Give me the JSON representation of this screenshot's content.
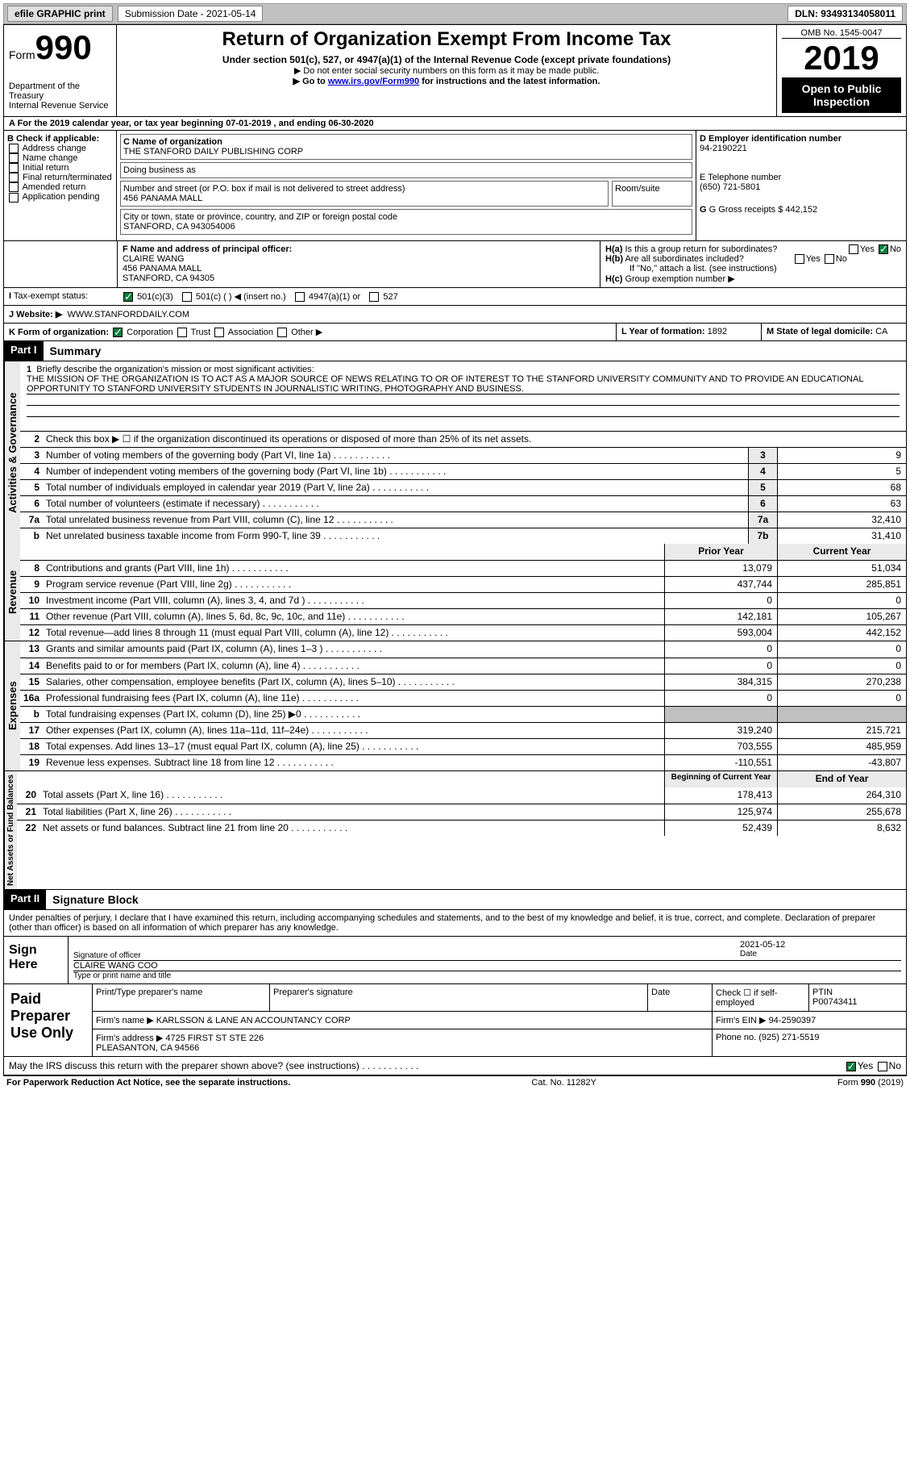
{
  "topbar": {
    "efile": "efile GRAPHIC print",
    "submission": "Submission Date - 2021-05-14",
    "dln": "DLN: 93493134058011"
  },
  "header": {
    "form": "Form",
    "form_num": "990",
    "dept": "Department of the Treasury\nInternal Revenue Service",
    "title": "Return of Organization Exempt From Income Tax",
    "subtitle": "Under section 501(c), 527, or 4947(a)(1) of the Internal Revenue Code (except private foundations)",
    "note1": "▶ Do not enter social security numbers on this form as it may be made public.",
    "note2_pre": "▶ Go to ",
    "note2_link": "www.irs.gov/Form990",
    "note2_post": " for instructions and the latest information.",
    "omb": "OMB No. 1545-0047",
    "year": "2019",
    "open": "Open to Public Inspection"
  },
  "sectA": "A For the 2019 calendar year, or tax year beginning 07-01-2019    , and ending 06-30-2020",
  "sectB": {
    "label": "Check if applicable:",
    "opts": [
      "Address change",
      "Name change",
      "Initial return",
      "Final return/terminated",
      "Amended return",
      "Application pending"
    ]
  },
  "sectC": {
    "name_lbl": "C Name of organization",
    "name": "THE STANFORD DAILY PUBLISHING CORP",
    "dba_lbl": "Doing business as",
    "addr_lbl": "Number and street (or P.O. box if mail is not delivered to street address)",
    "addr": "456 PANAMA MALL",
    "room_lbl": "Room/suite",
    "city_lbl": "City or town, state or province, country, and ZIP or foreign postal code",
    "city": "STANFORD, CA  943054006"
  },
  "sectD": {
    "lbl": "D Employer identification number",
    "val": "94-2190221"
  },
  "sectE": {
    "lbl": "E Telephone number",
    "val": "(650) 721-5801"
  },
  "sectG": {
    "lbl": "G Gross receipts $",
    "val": "442,152"
  },
  "sectF": {
    "lbl": "F  Name and address of principal officer:",
    "name": "CLAIRE WANG",
    "addr1": "456 PANAMA MALL",
    "addr2": "STANFORD, CA  94305"
  },
  "sectH": {
    "a": "Is this a group return for subordinates?",
    "b": "Are all subordinates included?",
    "note": "If \"No,\" attach a list. (see instructions)",
    "c": "Group exemption number ▶"
  },
  "sectI": {
    "lbl": "Tax-exempt status:",
    "o1": "501(c)(3)",
    "o2": "501(c) (  ) ◀ (insert no.)",
    "o3": "4947(a)(1) or",
    "o4": "527"
  },
  "sectJ": {
    "lbl": "J   Website: ▶",
    "val": "WWW.STANFORDDAILY.COM"
  },
  "sectK": {
    "lbl": "K Form of organization:",
    "o1": "Corporation",
    "o2": "Trust",
    "o3": "Association",
    "o4": "Other ▶"
  },
  "sectL": {
    "lbl": "L Year of formation:",
    "val": "1892"
  },
  "sectM": {
    "lbl": "M State of legal domicile:",
    "val": "CA"
  },
  "part1": {
    "hdr": "Part I",
    "title": "Summary",
    "l1_lbl": "Briefly describe the organization's mission or most significant activities:",
    "l1_text": "THE MISSION OF THE ORGANIZATION IS TO ACT AS A MAJOR SOURCE OF NEWS RELATING TO OR OF INTEREST TO THE STANFORD UNIVERSITY COMMUNITY AND TO PROVIDE AN EDUCATIONAL OPPORTUNITY TO STANFORD UNIVERSITY STUDENTS IN JOURNALISTIC WRITING, PHOTOGRAPHY AND BUSINESS.",
    "l2": "Check this box ▶ ☐  if the organization discontinued its operations or disposed of more than 25% of its net assets.",
    "grp1_label": "Activities & Governance",
    "rows_simple": [
      {
        "n": "3",
        "t": "Number of voting members of the governing body (Part VI, line 1a)",
        "box": "3",
        "v": "9"
      },
      {
        "n": "4",
        "t": "Number of independent voting members of the governing body (Part VI, line 1b)",
        "box": "4",
        "v": "5"
      },
      {
        "n": "5",
        "t": "Total number of individuals employed in calendar year 2019 (Part V, line 2a)",
        "box": "5",
        "v": "68"
      },
      {
        "n": "6",
        "t": "Total number of volunteers (estimate if necessary)",
        "box": "6",
        "v": "63"
      },
      {
        "n": "7a",
        "t": "Total unrelated business revenue from Part VIII, column (C), line 12",
        "box": "7a",
        "v": "32,410"
      },
      {
        "n": "b",
        "t": "Net unrelated business taxable income from Form 990-T, line 39",
        "box": "7b",
        "v": "31,410"
      }
    ],
    "col_prior": "Prior Year",
    "col_current": "Current Year",
    "grp2_label": "Revenue",
    "rows_rev": [
      {
        "n": "8",
        "t": "Contributions and grants (Part VIII, line 1h)",
        "p": "13,079",
        "c": "51,034"
      },
      {
        "n": "9",
        "t": "Program service revenue (Part VIII, line 2g)",
        "p": "437,744",
        "c": "285,851"
      },
      {
        "n": "10",
        "t": "Investment income (Part VIII, column (A), lines 3, 4, and 7d )",
        "p": "0",
        "c": "0"
      },
      {
        "n": "11",
        "t": "Other revenue (Part VIII, column (A), lines 5, 6d, 8c, 9c, 10c, and 11e)",
        "p": "142,181",
        "c": "105,267"
      },
      {
        "n": "12",
        "t": "Total revenue—add lines 8 through 11 (must equal Part VIII, column (A), line 12)",
        "p": "593,004",
        "c": "442,152"
      }
    ],
    "grp3_label": "Expenses",
    "rows_exp": [
      {
        "n": "13",
        "t": "Grants and similar amounts paid (Part IX, column (A), lines 1–3 )",
        "p": "0",
        "c": "0"
      },
      {
        "n": "14",
        "t": "Benefits paid to or for members (Part IX, column (A), line 4)",
        "p": "0",
        "c": "0"
      },
      {
        "n": "15",
        "t": "Salaries, other compensation, employee benefits (Part IX, column (A), lines 5–10)",
        "p": "384,315",
        "c": "270,238"
      },
      {
        "n": "16a",
        "t": "Professional fundraising fees (Part IX, column (A), line 11e)",
        "p": "0",
        "c": "0"
      },
      {
        "n": "b",
        "t": "Total fundraising expenses (Part IX, column (D), line 25) ▶0",
        "p": "grey",
        "c": "grey"
      },
      {
        "n": "17",
        "t": "Other expenses (Part IX, column (A), lines 11a–11d, 11f–24e)",
        "p": "319,240",
        "c": "215,721"
      },
      {
        "n": "18",
        "t": "Total expenses. Add lines 13–17 (must equal Part IX, column (A), line 25)",
        "p": "703,555",
        "c": "485,959"
      },
      {
        "n": "19",
        "t": "Revenue less expenses. Subtract line 18 from line 12",
        "p": "-110,551",
        "c": "-43,807"
      }
    ],
    "col_begin": "Beginning of Current Year",
    "col_end": "End of Year",
    "grp4_label": "Net Assets or Fund Balances",
    "rows_net": [
      {
        "n": "20",
        "t": "Total assets (Part X, line 16)",
        "p": "178,413",
        "c": "264,310"
      },
      {
        "n": "21",
        "t": "Total liabilities (Part X, line 26)",
        "p": "125,974",
        "c": "255,678"
      },
      {
        "n": "22",
        "t": "Net assets or fund balances. Subtract line 21 from line 20",
        "p": "52,439",
        "c": "8,632"
      }
    ]
  },
  "part2": {
    "hdr": "Part II",
    "title": "Signature Block",
    "decl": "Under penalties of perjury, I declare that I have examined this return, including accompanying schedules and statements, and to the best of my knowledge and belief, it is true, correct, and complete. Declaration of preparer (other than officer) is based on all information of which preparer has any knowledge.",
    "sign_here": "Sign Here",
    "sig_officer": "Signature of officer",
    "date": "Date",
    "sig_date": "2021-05-12",
    "name_title": "CLAIRE WANG COO",
    "name_title_lbl": "Type or print name and title",
    "paid": "Paid Preparer Use Only",
    "prep_name_lbl": "Print/Type preparer's name",
    "prep_sig_lbl": "Preparer's signature",
    "date_lbl": "Date",
    "check_lbl": "Check ☐ if self-employed",
    "ptin_lbl": "PTIN",
    "ptin": "P00743411",
    "firm_name_lbl": "Firm's name    ▶",
    "firm_name": "KARLSSON & LANE AN ACCOUNTANCY CORP",
    "firm_ein_lbl": "Firm's EIN ▶",
    "firm_ein": "94-2590397",
    "firm_addr_lbl": "Firm's address ▶",
    "firm_addr": "4725 FIRST ST STE 226\nPLEASANTON, CA  94566",
    "phone_lbl": "Phone no.",
    "phone": "(925) 271-5519",
    "may_irs": "May the IRS discuss this return with the preparer shown above? (see instructions)"
  },
  "footer": {
    "pra": "For Paperwork Reduction Act Notice, see the separate instructions.",
    "cat": "Cat. No. 11282Y",
    "form": "Form 990 (2019)"
  }
}
